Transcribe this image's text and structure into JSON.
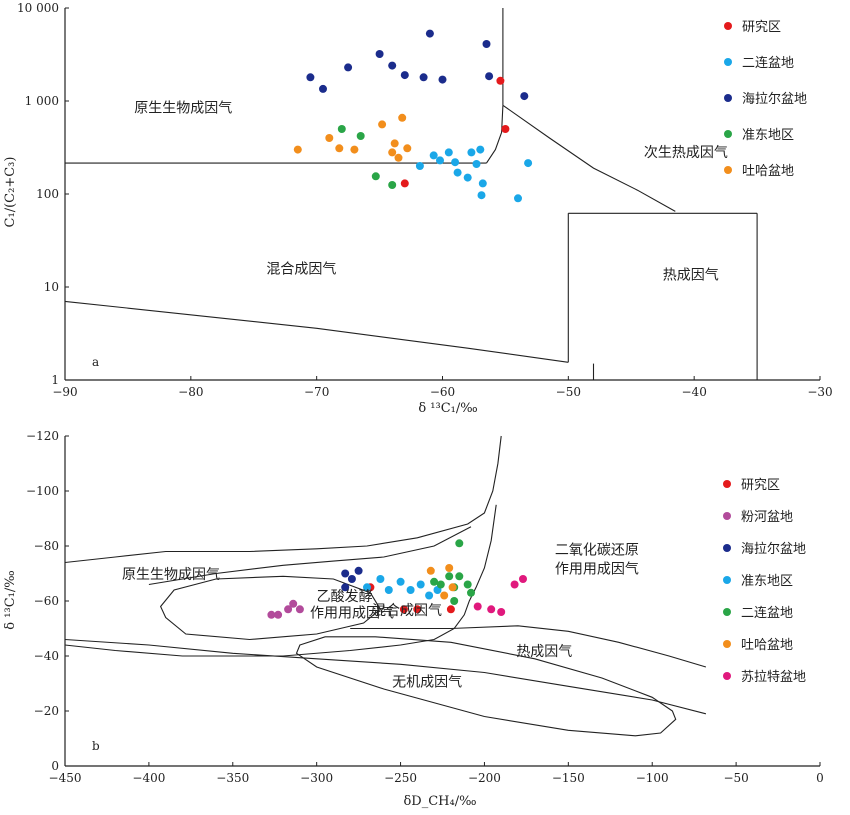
{
  "chart_data": [
    {
      "panel_id": "a",
      "panel_label": "a",
      "type": "scatter",
      "xlabel": "δ ¹³C₁/‰",
      "ylabel": "C₁/(C₂+C₃)",
      "xlim": [
        -90,
        -30
      ],
      "ylim": [
        1,
        10000
      ],
      "yscale": "log",
      "x_ticks": [
        -90,
        -80,
        -70,
        -60,
        -50,
        -40,
        -30
      ],
      "x_tick_labels": [
        "−90",
        "−80",
        "−70",
        "−60",
        "−50",
        "−40",
        "−30"
      ],
      "y_ticks": [
        1,
        10,
        100,
        1000,
        10000
      ],
      "y_tick_labels": [
        "1",
        "10",
        "100",
        "1 000",
        "10 000"
      ],
      "grid": false,
      "legend_position": "top-right",
      "region_labels": [
        {
          "text": "原生生物成因气",
          "x": -84.5,
          "y": 750
        },
        {
          "text": "次生热成因气",
          "x": -44,
          "y": 250
        },
        {
          "text": "混合成因气",
          "x": -74,
          "y": 14
        },
        {
          "text": "热成因气",
          "x": -42.5,
          "y": 12
        }
      ],
      "boundaries": [
        {
          "name": "biogenic-lower",
          "points": [
            [
              -90,
              215
            ],
            [
              -56.5,
              215
            ]
          ]
        },
        {
          "name": "biogenic-curve",
          "points": [
            [
              -56.5,
              215
            ],
            [
              -55.8,
              300
            ],
            [
              -55.3,
              460
            ],
            [
              -55.2,
              900
            ]
          ]
        },
        {
          "name": "biogenic-vertical",
          "points": [
            [
              -55.2,
              900
            ],
            [
              -55.2,
              10000
            ]
          ]
        },
        {
          "name": "secondary-thermal-lower",
          "points": [
            [
              -55.2,
              900
            ],
            [
              -51.5,
              400
            ],
            [
              -48,
              190
            ],
            [
              -44.5,
              110
            ],
            [
              -41.5,
              65
            ]
          ]
        },
        {
          "name": "mixed-lower",
          "points": [
            [
              -90,
              7
            ],
            [
              -70,
              3.6
            ],
            [
              -58,
              2.2
            ],
            [
              -50,
              1.55
            ]
          ]
        },
        {
          "name": "mixed-right",
          "points": [
            [
              -50,
              1.55
            ],
            [
              -50,
              62
            ]
          ]
        },
        {
          "name": "thermal-box-top",
          "points": [
            [
              -50,
              62
            ],
            [
              -35,
              62
            ]
          ]
        },
        {
          "name": "thermal-box-right",
          "points": [
            [
              -35,
              62
            ],
            [
              -35,
              1
            ]
          ]
        },
        {
          "name": "thermal-box-bottom",
          "points": [
            [
              -48,
              1.5
            ],
            [
              -48,
              1
            ]
          ]
        }
      ],
      "series": [
        {
          "name": "研究区",
          "color": "#e41a1c",
          "points": [
            [
              -63,
              130
            ],
            [
              -55,
              500
            ],
            [
              -55.4,
              1650
            ]
          ]
        },
        {
          "name": "二连盆地",
          "color": "#1aa7e8",
          "points": [
            [
              -61.8,
              200
            ],
            [
              -60.7,
              260
            ],
            [
              -60.2,
              230
            ],
            [
              -59.5,
              280
            ],
            [
              -59,
              220
            ],
            [
              -58.8,
              170
            ],
            [
              -58,
              150
            ],
            [
              -57.7,
              280
            ],
            [
              -57.3,
              210
            ],
            [
              -57,
              300
            ],
            [
              -56.8,
              130
            ],
            [
              -56.9,
              97
            ],
            [
              -54,
              90
            ],
            [
              -53.2,
              215
            ]
          ]
        },
        {
          "name": "海拉尔盆地",
          "color": "#1b2c8c",
          "points": [
            [
              -70.5,
              1800
            ],
            [
              -69.5,
              1350
            ],
            [
              -67.5,
              2300
            ],
            [
              -65,
              3200
            ],
            [
              -64,
              2400
            ],
            [
              -63,
              1900
            ],
            [
              -61.5,
              1800
            ],
            [
              -61,
              5300
            ],
            [
              -60,
              1700
            ],
            [
              -56.5,
              4100
            ],
            [
              -56.3,
              1850
            ],
            [
              -53.5,
              1130
            ]
          ]
        },
        {
          "name": "准东地区",
          "color": "#2aa547",
          "points": [
            [
              -68,
              500
            ],
            [
              -66.5,
              420
            ],
            [
              -65.3,
              155
            ],
            [
              -64,
              125
            ]
          ]
        },
        {
          "name": "吐哈盆地",
          "color": "#f28e1c",
          "points": [
            [
              -71.5,
              300
            ],
            [
              -69,
              400
            ],
            [
              -68.2,
              310
            ],
            [
              -67,
              300
            ],
            [
              -64.8,
              560
            ],
            [
              -64,
              280
            ],
            [
              -63.8,
              350
            ],
            [
              -63.5,
              245
            ],
            [
              -63.2,
              660
            ],
            [
              -62.8,
              310
            ]
          ]
        }
      ]
    },
    {
      "panel_id": "b",
      "panel_label": "b",
      "type": "scatter",
      "xlabel": "δD_CH₄/‰",
      "ylabel": "δ ¹³C₁/‰",
      "xlim": [
        -450,
        0
      ],
      "ylim": [
        0,
        -120
      ],
      "x_ticks": [
        -450,
        -400,
        -350,
        -300,
        -250,
        -200,
        -150,
        -100,
        -50,
        0
      ],
      "x_tick_labels": [
        "−450",
        "−400",
        "−350",
        "−300",
        "−250",
        "−200",
        "−150",
        "−100",
        "−50",
        "0"
      ],
      "y_ticks": [
        -120,
        -100,
        -80,
        -60,
        -40,
        -20,
        0
      ],
      "y_tick_labels": [
        "−120",
        "−100",
        "−80",
        "−60",
        "−40",
        "−20",
        "0"
      ],
      "grid": false,
      "legend_position": "top-right",
      "region_labels": [
        {
          "text": "原生生物成因气",
          "x": -416,
          "y": -68
        },
        {
          "text": "乙酸发酵",
          "x": -300,
          "y": -60
        },
        {
          "text": "作用用成因气",
          "x": -304,
          "y": -54
        },
        {
          "text": "混合成因气",
          "x": -267,
          "y": -55
        },
        {
          "text": "二氧化碳还原",
          "x": -158,
          "y": -77
        },
        {
          "text": "作用用成因气",
          "x": -158,
          "y": -70
        },
        {
          "text": "热成因气",
          "x": -181,
          "y": -40
        },
        {
          "text": "无机成因气",
          "x": -255,
          "y": -29
        }
      ],
      "boundaries": [
        {
          "name": "biogenic-region",
          "closed": false,
          "points": [
            [
              -450,
              -74
            ],
            [
              -420,
              -76
            ],
            [
              -390,
              -78
            ],
            [
              -340,
              -78
            ],
            [
              -300,
              -79
            ],
            [
              -270,
              -80
            ],
            [
              -240,
              -83
            ],
            [
              -210,
              -88
            ],
            [
              -200,
              -92
            ],
            [
              -195,
              -100
            ],
            [
              -192,
              -110
            ],
            [
              -190,
              -120
            ]
          ]
        },
        {
          "name": "biogenic-region-lower",
          "closed": false,
          "points": [
            [
              -450,
              -44
            ],
            [
              -420,
              -42
            ],
            [
              -380,
              -40
            ],
            [
              -320,
              -40
            ],
            [
              -280,
              -42
            ],
            [
              -250,
              -44
            ],
            [
              -230,
              -46
            ],
            [
              -218,
              -50
            ],
            [
              -212,
              -55
            ],
            [
              -209,
              -60
            ],
            [
              -205,
              -65
            ],
            [
              -200,
              -72
            ],
            [
              -196,
              -82
            ],
            [
              -193,
              -95
            ]
          ]
        },
        {
          "name": "acetate-fermentation",
          "closed": true,
          "points": [
            [
              -390,
              -54
            ],
            [
              -393,
              -58
            ],
            [
              -385,
              -64
            ],
            [
              -360,
              -68
            ],
            [
              -320,
              -69
            ],
            [
              -290,
              -68
            ],
            [
              -268,
              -63
            ],
            [
              -262,
              -57
            ],
            [
              -272,
              -52
            ],
            [
              -300,
              -48
            ],
            [
              -340,
              -46
            ],
            [
              -378,
              -48
            ],
            [
              -390,
              -54
            ]
          ]
        },
        {
          "name": "mixed-upper",
          "closed": false,
          "points": [
            [
              -400,
              -66
            ],
            [
              -360,
              -70
            ],
            [
              -320,
              -73
            ],
            [
              -290,
              -74.5
            ],
            [
              -260,
              -76
            ],
            [
              -230,
              -80
            ],
            [
              -208,
              -87
            ]
          ]
        },
        {
          "name": "thermal-upper",
          "closed": false,
          "points": [
            [
              -280,
              -50
            ],
            [
              -260,
              -50
            ],
            [
              -220,
              -50
            ],
            [
              -180,
              -51
            ],
            [
              -150,
              -49
            ],
            [
              -120,
              -45
            ],
            [
              -90,
              -40
            ],
            [
              -68,
              -36
            ]
          ]
        },
        {
          "name": "thermal-lower",
          "closed": false,
          "points": [
            [
              -450,
              -46
            ],
            [
              -400,
              -44
            ],
            [
              -350,
              -41
            ],
            [
              -300,
              -39
            ],
            [
              -250,
              -37
            ],
            [
              -200,
              -34
            ],
            [
              -150,
              -29
            ],
            [
              -100,
              -24
            ],
            [
              -68,
              -19
            ]
          ]
        },
        {
          "name": "inorganic",
          "closed": true,
          "points": [
            [
              -310,
              -44
            ],
            [
              -295,
              -47
            ],
            [
              -265,
              -47
            ],
            [
              -220,
              -45
            ],
            [
              -170,
              -39
            ],
            [
              -130,
              -32
            ],
            [
              -100,
              -25
            ],
            [
              -88,
              -20
            ],
            [
              -86,
              -17
            ],
            [
              -95,
              -12
            ],
            [
              -110,
              -11
            ],
            [
              -150,
              -13
            ],
            [
              -200,
              -18
            ],
            [
              -260,
              -28
            ],
            [
              -300,
              -36
            ],
            [
              -312,
              -41
            ],
            [
              -310,
              -44
            ]
          ]
        }
      ],
      "series": [
        {
          "name": "研究区",
          "color": "#e41a1c",
          "points": [
            [
              -268,
              -65
            ],
            [
              -248,
              -57
            ],
            [
              -240,
              -57
            ],
            [
              -220,
              -57
            ]
          ]
        },
        {
          "name": "粉河盆地",
          "color": "#b24b9b",
          "points": [
            [
              -327,
              -55
            ],
            [
              -323,
              -55
            ],
            [
              -317,
              -57
            ],
            [
              -314,
              -59
            ],
            [
              -310,
              -57
            ]
          ]
        },
        {
          "name": "海拉尔盆地",
          "color": "#1b2c8c",
          "points": [
            [
              -283,
              -70
            ],
            [
              -279,
              -68
            ],
            [
              -275,
              -71
            ],
            [
              -283,
              -65
            ]
          ]
        },
        {
          "name": "准东地区",
          "color": "#1aa7e8",
          "points": [
            [
              -270,
              -65
            ],
            [
              -262,
              -68
            ],
            [
              -257,
              -64
            ],
            [
              -250,
              -67
            ],
            [
              -244,
              -64
            ],
            [
              -238,
              -66
            ],
            [
              -233,
              -62
            ],
            [
              -228,
              -64
            ]
          ]
        },
        {
          "name": "二连盆地",
          "color": "#2aa547",
          "points": [
            [
              -230,
              -67
            ],
            [
              -226,
              -66
            ],
            [
              -221,
              -69
            ],
            [
              -218,
              -65
            ],
            [
              -215,
              -69
            ],
            [
              -210,
              -66
            ],
            [
              -208,
              -63
            ],
            [
              -215,
              -81
            ],
            [
              -218,
              -60
            ]
          ]
        },
        {
          "name": "吐哈盆地",
          "color": "#f28e1c",
          "points": [
            [
              -232,
              -71
            ],
            [
              -221,
              -72
            ],
            [
              -219,
              -65
            ],
            [
              -224,
              -62
            ]
          ]
        },
        {
          "name": "苏拉特盆地",
          "color": "#e0197d",
          "points": [
            [
              -204,
              -58
            ],
            [
              -196,
              -57
            ],
            [
              -190,
              -56
            ],
            [
              -182,
              -66
            ],
            [
              -177,
              -68
            ]
          ]
        }
      ]
    }
  ]
}
